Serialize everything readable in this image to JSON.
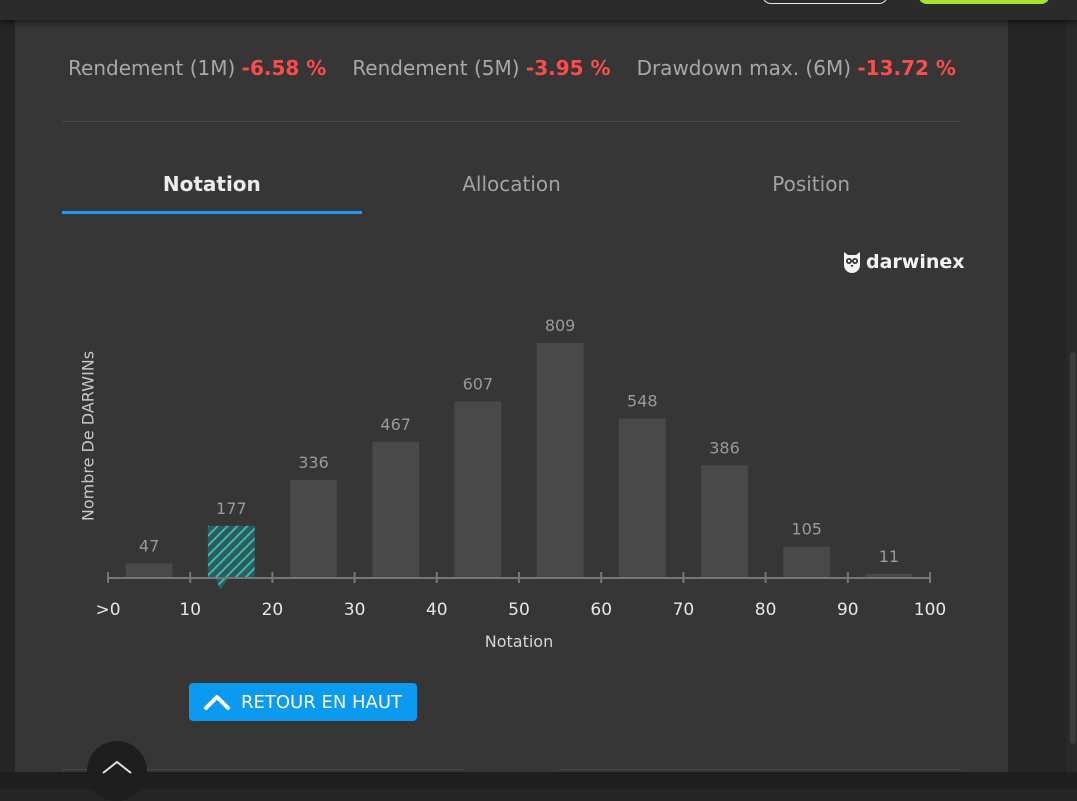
{
  "stats": [
    {
      "label": "Rendement (1M)",
      "value": "-6.58 %"
    },
    {
      "label": "Rendement (5M)",
      "value": "-3.95 %"
    },
    {
      "label": "Drawdown max. (6M)",
      "value": "-13.72 %"
    }
  ],
  "tabs": [
    {
      "label": "Notation",
      "active": true
    },
    {
      "label": "Allocation",
      "active": false
    },
    {
      "label": "Position",
      "active": false
    }
  ],
  "logo": {
    "text": "darwinex",
    "icon": "owl-icon"
  },
  "colors": {
    "accent": "#2196f3",
    "negative": "#ff4b4b",
    "highlight": "#35c4c0",
    "button": "#0a9af0"
  },
  "chart_data": {
    "type": "bar",
    "ylabel": "Nombre De DARWINs",
    "xlabel": "Notation",
    "x_ticks": [
      ">0",
      "10",
      "20",
      "30",
      "40",
      "50",
      "60",
      "70",
      "80",
      "90",
      "100"
    ],
    "bins": [
      [
        0,
        10
      ],
      [
        10,
        20
      ],
      [
        20,
        30
      ],
      [
        30,
        40
      ],
      [
        40,
        50
      ],
      [
        50,
        60
      ],
      [
        60,
        70
      ],
      [
        70,
        80
      ],
      [
        80,
        90
      ],
      [
        90,
        100
      ]
    ],
    "values": [
      47,
      177,
      336,
      467,
      607,
      809,
      548,
      386,
      105,
      11
    ],
    "highlight_bin": 1,
    "xlim": [
      0,
      100
    ],
    "grid": false
  },
  "back_to_top": {
    "label": "RETOUR EN HAUT"
  }
}
